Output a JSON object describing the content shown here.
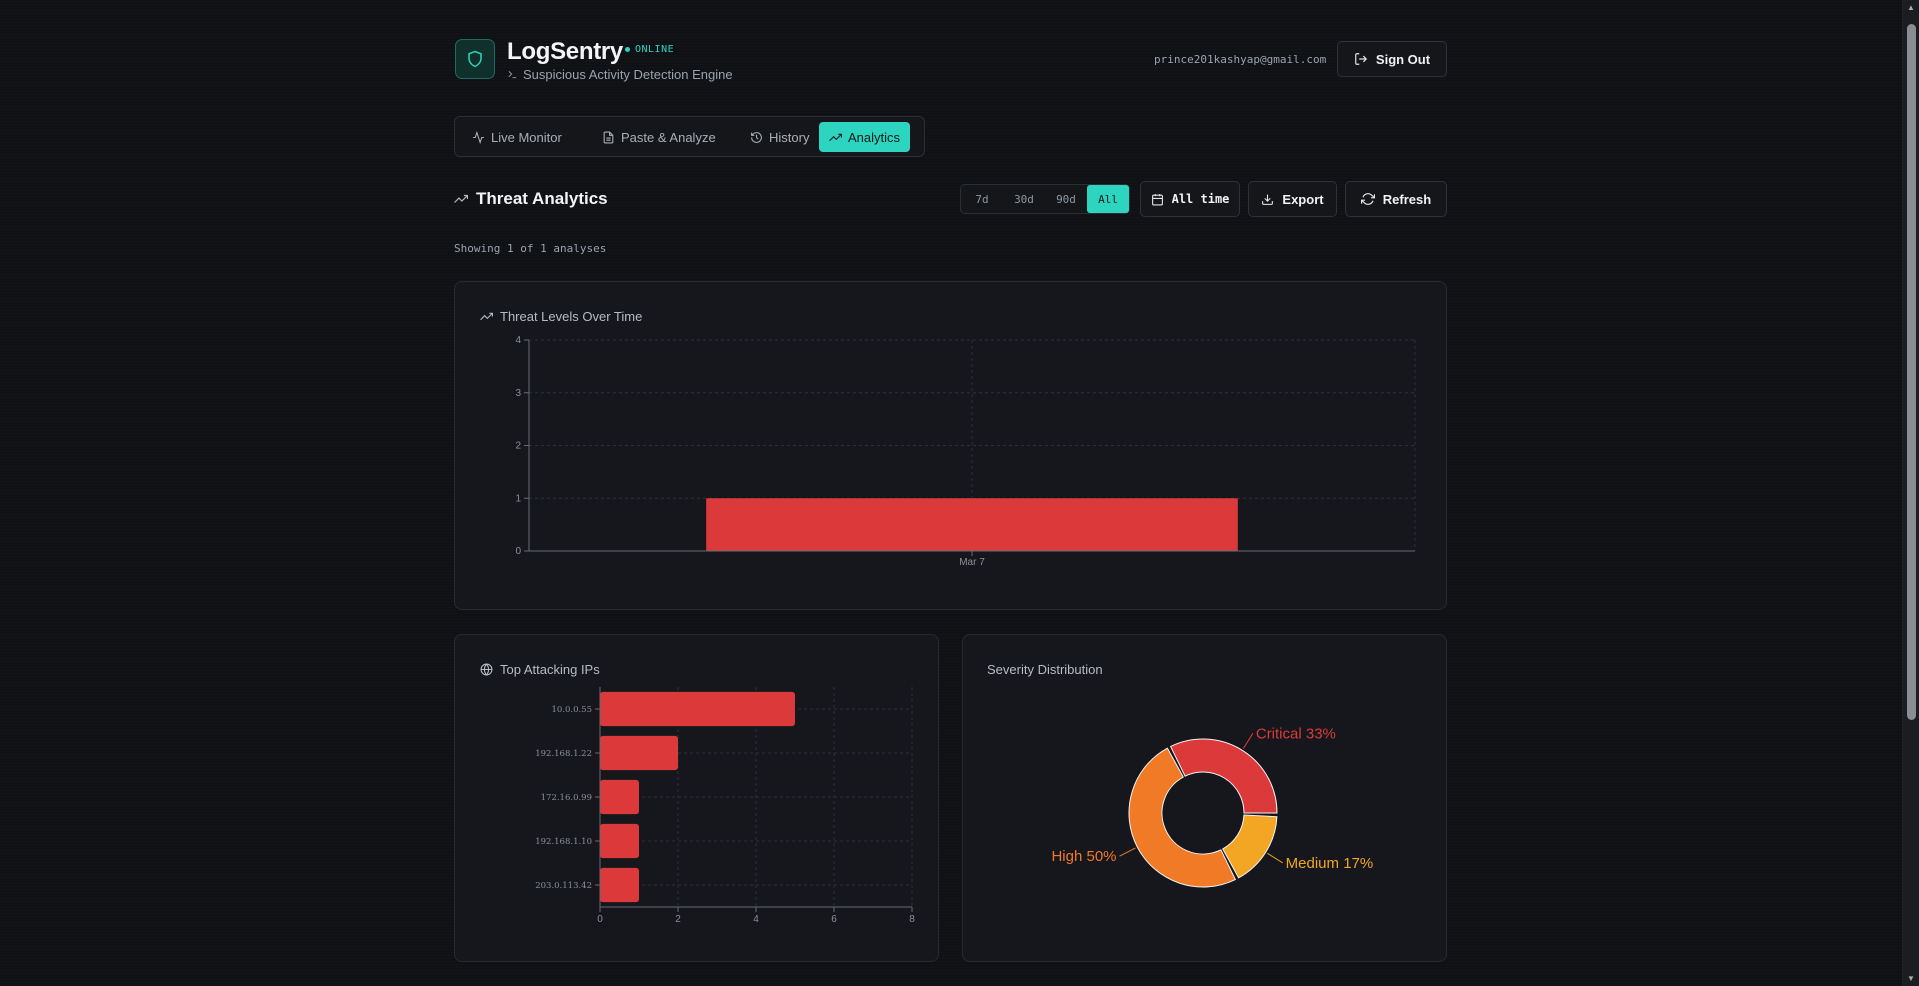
{
  "app": {
    "name": "LogSentry",
    "status": "ONLINE",
    "tagline": "Suspicious Activity Detection Engine",
    "user_email": "prince201kashyap@gmail.com",
    "sign_out_label": "Sign Out"
  },
  "tabs": [
    {
      "label": "Live Monitor",
      "icon": "activity-icon"
    },
    {
      "label": "Paste & Analyze",
      "icon": "document-icon"
    },
    {
      "label": "History",
      "icon": "history-icon"
    },
    {
      "label": "Analytics",
      "icon": "trending-up-icon",
      "active": true
    }
  ],
  "analytics": {
    "title": "Threat Analytics",
    "ranges": [
      "7d",
      "30d",
      "90d",
      "All"
    ],
    "selected_range": "All",
    "date_button": "All time",
    "export_label": "Export",
    "refresh_label": "Refresh",
    "showing_text": "Showing 1 of 1 analyses"
  },
  "colors": {
    "accent": "#2dd4bf",
    "critical": "#dc3a3a",
    "high": "#f07a26",
    "medium": "#f2a624"
  },
  "chart_data": [
    {
      "type": "bar",
      "title": "Threat Levels Over Time",
      "categories": [
        "Mar 7"
      ],
      "values": [
        1
      ],
      "ylim": [
        0,
        4
      ],
      "yticks": [
        0,
        1,
        2,
        3,
        4
      ],
      "xlabel": "",
      "ylabel": "",
      "grid": true
    },
    {
      "type": "bar",
      "orientation": "horizontal",
      "title": "Top Attacking IPs",
      "categories": [
        "10.0.0.55",
        "192.168.1.22",
        "172.16.0.99",
        "192.168.1.10",
        "203.0.113.42"
      ],
      "values": [
        5,
        2,
        1,
        1,
        1
      ],
      "xlim": [
        0,
        8
      ],
      "xticks": [
        0,
        2,
        4,
        6,
        8
      ],
      "grid": true
    },
    {
      "type": "pie",
      "title": "Severity Distribution",
      "slices": [
        {
          "label": "Critical",
          "value": 33,
          "display": "Critical 33%",
          "color": "#dc3a3a"
        },
        {
          "label": "Medium",
          "value": 17,
          "display": "Medium 17%",
          "color": "#f2a624"
        },
        {
          "label": "High",
          "value": 50,
          "display": "High 50%",
          "color": "#f07a26"
        }
      ]
    }
  ]
}
